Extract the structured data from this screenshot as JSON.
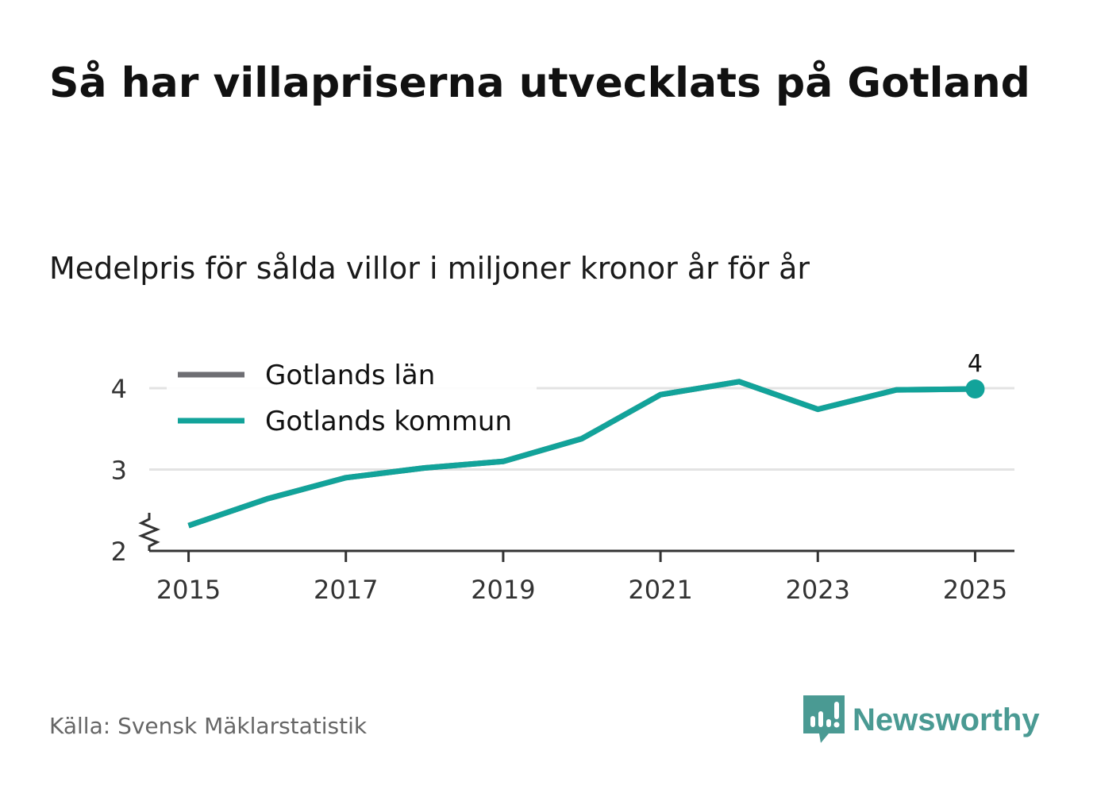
{
  "title": "Så har villapriserna utvecklats på Gotland",
  "subtitle": "Medelpris för sålda villor i miljoner kronor år för år",
  "source": "Källa: Svensk Mäklarstatistik",
  "brand": "Newsworthy",
  "colors": {
    "kommun": "#12a39a",
    "lan": "#6e6e73",
    "grid": "#e3e3e3",
    "axis": "#333333",
    "brand": "#4a9a93"
  },
  "chart_data": {
    "type": "line",
    "ylim": [
      2,
      4.4
    ],
    "yticks": [
      2,
      3,
      4
    ],
    "xlim": [
      2014.5,
      2025.5
    ],
    "xticks": [
      2015,
      2017,
      2019,
      2021,
      2023,
      2025
    ],
    "axis_break": true,
    "grid": true,
    "legend_position": "top-left",
    "series": [
      {
        "name": "Gotlands län",
        "color": "#6e6e73",
        "x": [
          2015,
          2016,
          2017,
          2018,
          2019,
          2020,
          2021,
          2022,
          2023,
          2024,
          2025
        ],
        "values": [
          2.31,
          2.64,
          2.9,
          3.02,
          3.1,
          3.38,
          3.92,
          4.08,
          3.74,
          3.98,
          3.99
        ]
      },
      {
        "name": "Gotlands kommun",
        "color": "#12a39a",
        "x": [
          2015,
          2016,
          2017,
          2018,
          2019,
          2020,
          2021,
          2022,
          2023,
          2024,
          2025
        ],
        "values": [
          2.31,
          2.64,
          2.9,
          3.02,
          3.1,
          3.38,
          3.92,
          4.08,
          3.74,
          3.98,
          3.99
        ]
      }
    ],
    "annotations": [
      {
        "series": "Gotlands kommun",
        "x": 2025,
        "label": "4"
      }
    ]
  }
}
